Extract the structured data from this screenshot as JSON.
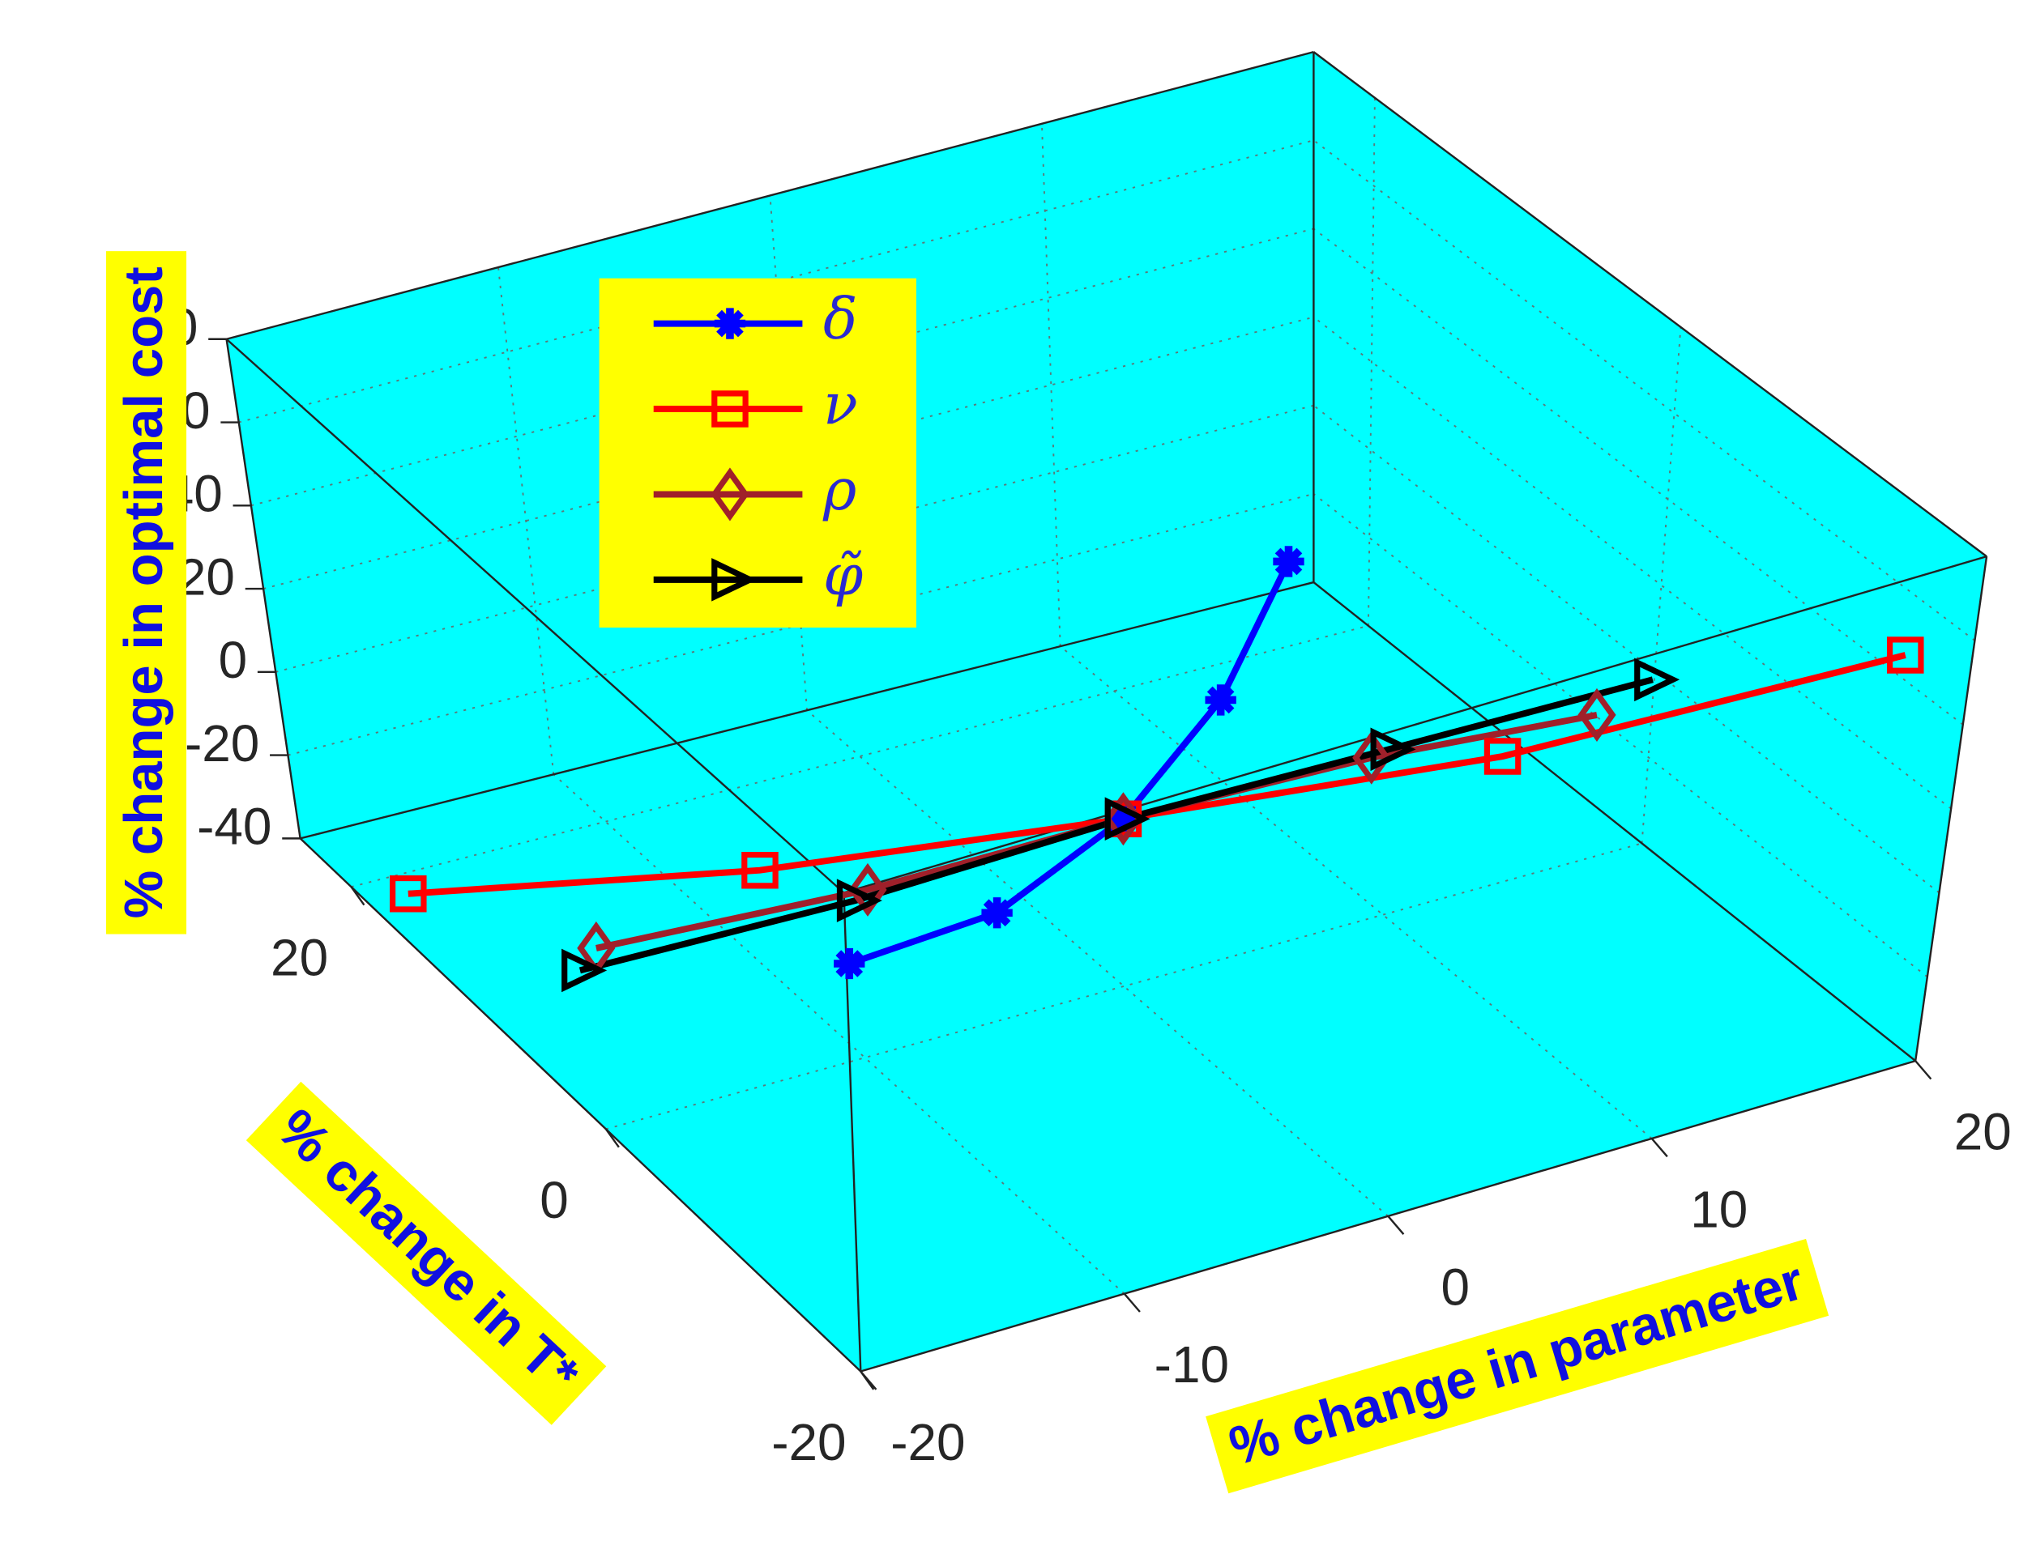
{
  "chart_data": {
    "type": "line3d",
    "xlabel": "% change in parameter",
    "ylabel": "% change in T*",
    "zlabel": "% change in optimal cost",
    "xlim": [
      -20,
      20
    ],
    "xticks": [
      -20,
      -10,
      0,
      10,
      20
    ],
    "ylim": [
      -20,
      24
    ],
    "yticks": [
      -20,
      0,
      20
    ],
    "zlim": [
      -40,
      80
    ],
    "zticks": [
      -40,
      -20,
      0,
      20,
      40,
      60,
      80
    ],
    "background": "#00ffff",
    "grid": true,
    "series": [
      {
        "name": "δ",
        "color": "#0000ff",
        "marker": "star",
        "x": [
          -10,
          -5,
          0,
          5,
          10
        ],
        "y": [
          0.9,
          -0.4,
          0,
          2.6,
          7.3
        ],
        "z": [
          -19.8,
          -12.6,
          0,
          12.3,
          23.5
        ]
      },
      {
        "name": "ν",
        "color": "#ff0000",
        "marker": "square",
        "x": [
          -20,
          -10,
          0,
          10,
          20
        ],
        "y": [
          15,
          7.6,
          0,
          -7.8,
          -15.9
        ],
        "z": [
          -27,
          -16.5,
          0,
          18.4,
          45.5
        ]
      },
      {
        "name": "ρ",
        "color": "#a0202a",
        "marker": "diamond",
        "x": [
          -20,
          -10,
          0,
          10,
          20
        ],
        "y": [
          -0.5,
          -0.8,
          0,
          1.2,
          3.7
        ],
        "z": [
          6,
          3,
          0,
          -6.2,
          -19.6
        ]
      },
      {
        "name": "φ̃",
        "color": "#000000",
        "marker": "triangle",
        "x": [
          -20,
          -10,
          0,
          10,
          20
        ],
        "y": [
          1,
          0.2,
          0,
          0,
          0.1
        ],
        "z": [
          -4,
          -2.5,
          0,
          -1,
          -2.2
        ]
      }
    ]
  }
}
